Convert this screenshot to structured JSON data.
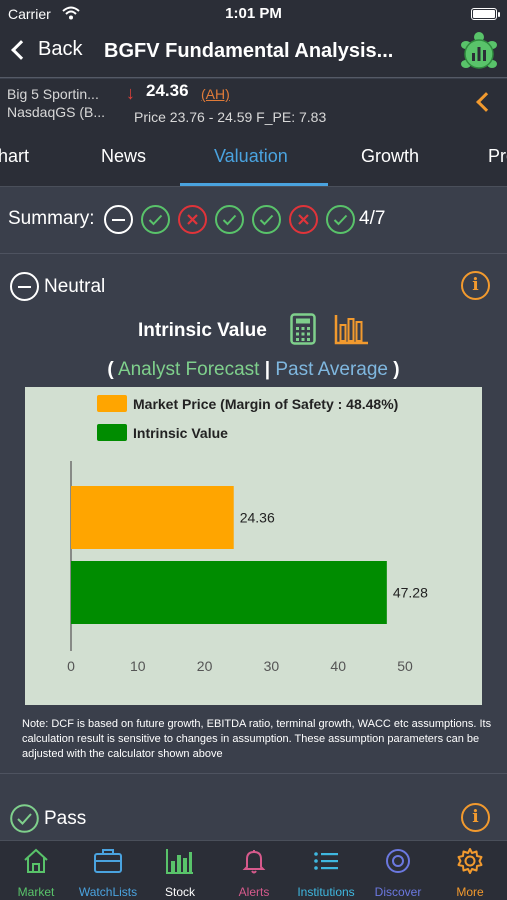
{
  "status_bar": {
    "carrier": "Carrier",
    "time": "1:01 PM"
  },
  "nav": {
    "back_label": "Back",
    "title": "BGFV Fundamental Analysis..."
  },
  "quote": {
    "name_line1": "Big 5 Sportin...",
    "name_line2": "NasdaqGS (B...",
    "last_price": "24.36",
    "after_hours": "(AH)",
    "range_text": "Price  23.76 - 24.59  F_PE: 7.83",
    "direction": "down",
    "down_color": "#e0403a"
  },
  "tabs": [
    {
      "label": "hart",
      "active": false
    },
    {
      "label": "News",
      "active": false
    },
    {
      "label": "Valuation",
      "active": true
    },
    {
      "label": "Growth",
      "active": false
    },
    {
      "label": "Pro",
      "active": false
    }
  ],
  "summary": {
    "label": "Summary:",
    "results": [
      "neutral",
      "pass",
      "fail",
      "pass",
      "pass",
      "fail",
      "pass"
    ],
    "score": "4/7"
  },
  "section_neutral": {
    "title": "Neutral",
    "status": "neutral"
  },
  "intrinsic": {
    "title": "Intrinsic Value",
    "calculator_icon": "calculator-icon",
    "bar_chart_icon": "bar-chart-icon",
    "open_paren": "(",
    "analyst_forecast": "Analyst Forecast",
    "separator": "|",
    "past_average": "Past Average",
    "close_paren": ")"
  },
  "chart_data": {
    "type": "bar",
    "orientation": "horizontal",
    "series": [
      {
        "name": "Market Price (Margin of Safety : 48.48%)",
        "value": 24.36,
        "label": "24.36",
        "color": "#ffa500"
      },
      {
        "name": "Intrinsic Value",
        "value": 47.28,
        "label": "47.28",
        "color": "#008c00"
      }
    ],
    "xlim": [
      0,
      50
    ],
    "xticks": [
      "0",
      "10",
      "20",
      "30",
      "40",
      "50"
    ],
    "grid": false,
    "legend_position": "top-left"
  },
  "note": "Note: DCF is based on future growth, EBITDA ratio, terminal growth, WACC etc assumptions. Its calculation result is sensitive to changes in assumption. These assumption parameters can be adjusted with the calculator shown above",
  "section_pass": {
    "title": "Pass",
    "status": "pass"
  },
  "tab_bar": [
    {
      "label": "Market",
      "icon": "home-icon",
      "color": "#59c36a",
      "active": false
    },
    {
      "label": "WatchLists",
      "icon": "briefcase-icon",
      "color": "#4aa3df",
      "active": false
    },
    {
      "label": "Stock",
      "icon": "stock-chart-icon",
      "color": "#59c36a",
      "active": true
    },
    {
      "label": "Alerts",
      "icon": "bell-icon",
      "color": "#d75a8c",
      "active": false
    },
    {
      "label": "Institutions",
      "icon": "list-icon",
      "color": "#3fb8e0",
      "active": false
    },
    {
      "label": "Discover",
      "icon": "discover-icon",
      "color": "#6b78e0",
      "active": false
    },
    {
      "label": "More",
      "icon": "gear-icon",
      "color": "#f29a2e",
      "active": false
    }
  ],
  "colors": {
    "accent_blue": "#4aa3df",
    "accent_orange": "#f29a2e",
    "pass_green": "#59c36a",
    "fail_red": "#e0343a"
  }
}
